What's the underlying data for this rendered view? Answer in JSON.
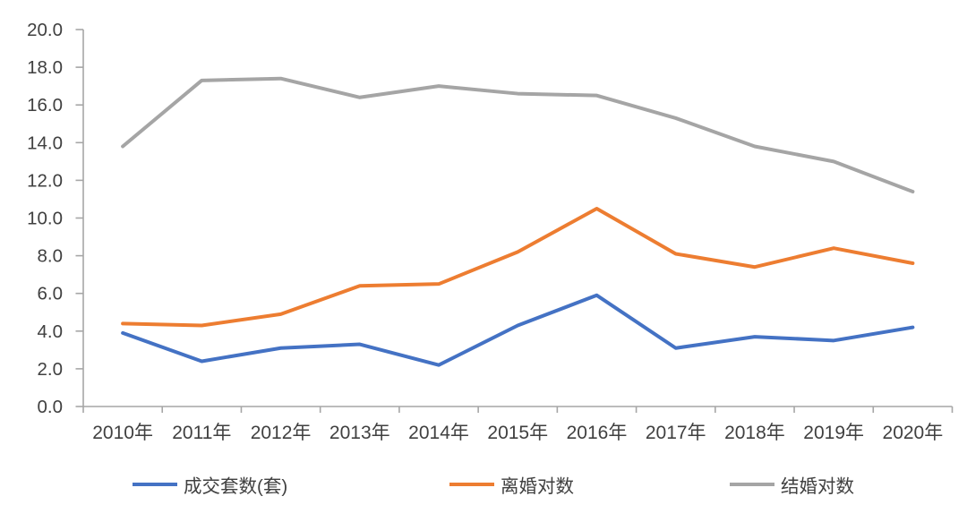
{
  "chart_data": {
    "type": "line",
    "title": "",
    "xlabel": "",
    "ylabel": "",
    "grid": false,
    "legend_position": "bottom",
    "background_color": "#ffffff",
    "axis_color": "#A6A6A6",
    "text_color": "#404040",
    "ylim": [
      0,
      20
    ],
    "ytick_step": 2,
    "ytick_labels": [
      "0.0",
      "2.0",
      "4.0",
      "6.0",
      "8.0",
      "10.0",
      "12.0",
      "14.0",
      "16.0",
      "18.0",
      "20.0"
    ],
    "categories": [
      "2010年",
      "2011年",
      "2012年",
      "2013年",
      "2014年",
      "2015年",
      "2016年",
      "2017年",
      "2018年",
      "2019年",
      "2020年"
    ],
    "series": [
      {
        "name": "成交套数(套)",
        "color": "#4472C4",
        "values": [
          3.9,
          2.4,
          3.1,
          3.3,
          2.2,
          4.3,
          5.9,
          3.1,
          3.7,
          3.5,
          4.2
        ]
      },
      {
        "name": "离婚对数",
        "color": "#ED7D31",
        "values": [
          4.4,
          4.3,
          4.9,
          6.4,
          6.5,
          8.2,
          10.5,
          8.1,
          7.4,
          8.4,
          7.6
        ]
      },
      {
        "name": "结婚对数",
        "color": "#A5A5A5",
        "values": [
          13.8,
          17.3,
          17.4,
          16.4,
          17.0,
          16.6,
          16.5,
          15.3,
          13.8,
          13.0,
          11.4
        ]
      }
    ]
  }
}
